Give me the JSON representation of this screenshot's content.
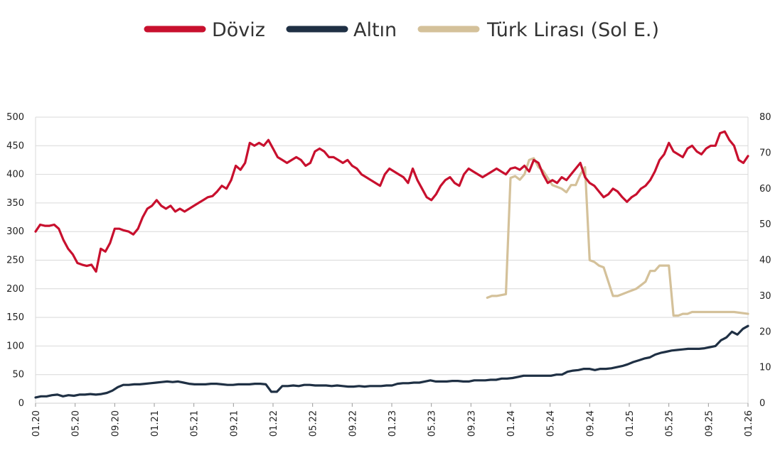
{
  "chart_data": {
    "type": "line",
    "legend": {
      "placement": "top-center"
    },
    "grid": true,
    "y_left": {
      "ylim": [
        0,
        500
      ],
      "ticks": [
        "0",
        "50",
        "100",
        "150",
        "200",
        "250",
        "300",
        "350",
        "400",
        "450",
        "500"
      ]
    },
    "y_right": {
      "ylim": [
        0,
        80
      ],
      "ticks": [
        "0",
        "10",
        "20",
        "30",
        "40",
        "50",
        "60",
        "70",
        "80"
      ]
    },
    "x_ticks": [
      "01.20",
      "05.20",
      "09.20",
      "01.21",
      "05.21",
      "09.21",
      "01.22",
      "05.22",
      "09.22",
      "01.23",
      "05.23",
      "09.23",
      "01.24",
      "05.24",
      "09.24",
      "01.25",
      "05.25",
      "09.25",
      "01.26"
    ],
    "series": [
      {
        "name": "Döviz",
        "axis": "left",
        "color": "#c8102e",
        "values": [
          300,
          312,
          310,
          310,
          312,
          305,
          285,
          270,
          260,
          245,
          242,
          240,
          242,
          230,
          270,
          265,
          280,
          305,
          305,
          302,
          300,
          295,
          305,
          325,
          340,
          345,
          355,
          345,
          340,
          345,
          335,
          340,
          335,
          340,
          345,
          350,
          355,
          360,
          362,
          370,
          380,
          375,
          390,
          415,
          408,
          420,
          455,
          450,
          455,
          450,
          460,
          445,
          430,
          425,
          420,
          425,
          430,
          425,
          415,
          420,
          440,
          445,
          440,
          430,
          430,
          425,
          420,
          425,
          415,
          410,
          400,
          395,
          390,
          385,
          380,
          400,
          410,
          405,
          400,
          395,
          385,
          410,
          390,
          375,
          360,
          355,
          365,
          380,
          390,
          395,
          385,
          380,
          400,
          410,
          405,
          400,
          395,
          400,
          405,
          410,
          405,
          400,
          410,
          412,
          408,
          415,
          405,
          425,
          420,
          400,
          385,
          390,
          385,
          395,
          390,
          400,
          410,
          420,
          395,
          385,
          380,
          370,
          360,
          365,
          375,
          370,
          360,
          352,
          360,
          365,
          375,
          380,
          390,
          405,
          425,
          435,
          455,
          440,
          435,
          430,
          445,
          450,
          440,
          435,
          445,
          450,
          450,
          472,
          475,
          460,
          450,
          425,
          420,
          432
        ],
        "x": [
          0,
          1,
          2,
          3,
          4,
          5,
          6,
          7,
          8,
          9,
          10,
          11,
          12,
          13,
          14,
          15,
          16,
          17,
          18,
          19,
          20,
          21,
          22,
          23,
          24,
          25,
          26,
          27,
          28,
          29,
          30,
          31,
          32,
          33,
          34,
          35,
          36,
          37,
          38,
          39,
          40,
          41,
          42,
          43,
          44,
          45,
          46,
          47,
          48,
          49,
          50,
          51,
          52,
          53,
          54,
          55,
          56,
          57,
          58,
          59,
          60,
          61,
          62,
          63,
          64,
          65,
          66,
          67,
          68,
          69,
          70,
          71,
          72,
          73,
          74,
          75,
          76,
          77,
          78,
          79,
          80,
          81,
          82,
          83,
          84,
          85,
          86,
          87,
          88,
          89,
          90,
          91,
          92,
          93,
          94,
          95,
          96,
          97,
          98,
          99,
          100,
          101,
          102,
          103,
          104,
          105,
          106,
          107,
          108,
          109,
          110,
          111,
          112,
          113,
          114,
          115,
          116,
          117,
          118,
          119,
          120,
          121,
          122,
          123,
          124,
          125,
          126,
          127,
          128,
          129,
          130,
          131,
          132,
          133,
          134,
          135,
          136,
          137,
          138,
          139,
          140,
          141,
          142,
          143,
          144,
          145,
          146,
          147,
          148,
          149,
          150,
          151,
          152,
          153
        ]
      },
      {
        "name": "Altın",
        "axis": "left",
        "color": "#1f3044",
        "values": [
          10,
          12,
          12,
          14,
          15,
          12,
          14,
          13,
          15,
          15,
          16,
          15,
          16,
          18,
          22,
          28,
          32,
          32,
          33,
          33,
          34,
          35,
          36,
          37,
          38,
          37,
          38,
          36,
          34,
          33,
          33,
          33,
          34,
          34,
          33,
          32,
          32,
          33,
          33,
          33,
          34,
          34,
          33,
          20,
          20,
          30,
          30,
          31,
          30,
          32,
          32,
          31,
          31,
          31,
          30,
          31,
          30,
          29,
          29,
          30,
          29,
          30,
          30,
          30,
          31,
          31,
          34,
          35,
          35,
          36,
          36,
          38,
          40,
          38,
          38,
          38,
          39,
          39,
          38,
          38,
          40,
          40,
          40,
          41,
          41,
          43,
          43,
          44,
          46,
          48,
          48,
          48,
          48,
          48,
          48,
          50,
          50,
          55,
          57,
          58,
          60,
          60,
          58,
          60,
          60,
          61,
          63,
          65,
          68,
          72,
          75,
          78,
          80,
          85,
          88,
          90,
          92,
          93,
          94,
          95,
          95,
          95,
          96,
          98,
          100,
          110,
          115,
          125,
          120,
          130,
          135
        ],
        "x": [
          0,
          1.18,
          2.36,
          3.53,
          4.71,
          5.89,
          7.07,
          8.24,
          9.42,
          10.6,
          11.78,
          12.95,
          14.13,
          15.31,
          16.49,
          17.66,
          18.84,
          20.02,
          21.2,
          22.38,
          23.55,
          24.73,
          25.91,
          27.09,
          28.26,
          29.44,
          30.62,
          31.8,
          32.97,
          34.15,
          35.33,
          36.51,
          37.68,
          38.86,
          40.04,
          41.22,
          42.39,
          43.57,
          44.75,
          45.93,
          47.1,
          48.28,
          49.46,
          50.64,
          51.82,
          52.99,
          54.17,
          55.35,
          56.53,
          57.7,
          58.88,
          60.06,
          61.24,
          62.41,
          63.59,
          64.77,
          65.95,
          67.12,
          68.3,
          69.48,
          70.66,
          71.83,
          73.01,
          74.19,
          75.37,
          76.54,
          77.72,
          78.9,
          80.08,
          81.25,
          82.43,
          83.61,
          84.79,
          85.96,
          87.14,
          88.32,
          89.5,
          90.68,
          91.85,
          93.03,
          94.21,
          95.39,
          96.56,
          97.74,
          98.92,
          100.1,
          101.27,
          102.45,
          103.63,
          104.81,
          105.98,
          107.16,
          108.34,
          109.52,
          110.69,
          111.87,
          113.05,
          114.23,
          115.4,
          116.58,
          117.76,
          118.94,
          120.12,
          121.29,
          122.47,
          123.65,
          124.83,
          126,
          127.18,
          128.36,
          129.54,
          130.71,
          131.89,
          133.07,
          134.25,
          135.42,
          136.6,
          137.78,
          138.96,
          140.13,
          141.31,
          142.49,
          143.67,
          144.84,
          146.02,
          147.2,
          148.38,
          149.55,
          150.73,
          151.91,
          153
        ]
      },
      {
        "name": "Türk Lirası (Sol E.)",
        "axis": "right",
        "color": "#d4c19a",
        "values": [
          29.5,
          30,
          30,
          30.5,
          63,
          63.5,
          62.5,
          64,
          68,
          68.5,
          66,
          65,
          63,
          61,
          60.5,
          60,
          59,
          61,
          61,
          64,
          66,
          40,
          39.5,
          38.5,
          38,
          30,
          30,
          30.5,
          31,
          31.5,
          32,
          33,
          34,
          37,
          37,
          38.5,
          38.5,
          38.5,
          24.5,
          24.5,
          25,
          25,
          25.5,
          25.5,
          25.5,
          25.5,
          25.5,
          25.5,
          25
        ],
        "x": [
          97,
          98,
          99,
          101,
          102,
          103,
          104,
          105,
          106,
          107,
          108,
          109,
          110,
          111,
          112,
          113,
          114,
          115,
          116,
          117,
          118,
          119,
          120,
          121,
          122,
          124,
          125,
          126,
          127,
          128,
          129,
          130,
          131,
          132,
          133,
          134,
          135,
          136,
          137,
          138,
          139,
          140,
          141,
          142,
          143,
          145,
          147,
          150,
          153
        ]
      }
    ]
  }
}
